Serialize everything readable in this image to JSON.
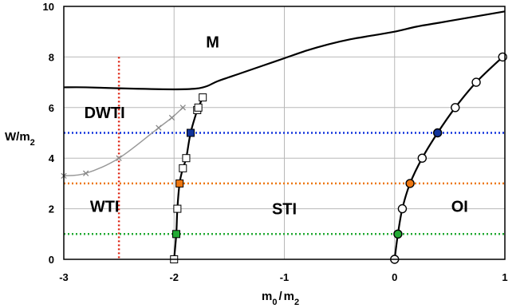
{
  "chart_data": {
    "type": "line",
    "xlabel": {
      "base": "m",
      "sub": "0",
      "sep": "/",
      "base2": "m",
      "sub2": "2"
    },
    "ylabel": {
      "base": "W/m",
      "sub": "2"
    },
    "xlim": [
      -3,
      1
    ],
    "ylim": [
      0,
      10
    ],
    "xticks": [
      -3,
      -2,
      -1,
      0,
      1
    ],
    "xtick_labels": [
      "-3",
      "-2",
      "-1",
      "0",
      "1"
    ],
    "yticks": [
      0,
      2,
      4,
      6,
      8,
      10
    ],
    "ytick_labels": [
      "0",
      "2",
      "4",
      "6",
      "8",
      "10"
    ],
    "grid": true,
    "phase_labels": [
      {
        "text": "M",
        "x": -1.65,
        "y": 8.6
      },
      {
        "text": "DWTI",
        "x": -2.63,
        "y": 5.8
      },
      {
        "text": "WTI",
        "x": -2.63,
        "y": 2.1
      },
      {
        "text": "STI",
        "x": -1.0,
        "y": 2.0
      },
      {
        "text": "OI",
        "x": 0.59,
        "y": 2.1
      }
    ],
    "series": [
      {
        "style": "solid-black",
        "points": [
          [
            -3,
            6.8
          ],
          [
            -2.8,
            6.8
          ],
          [
            -2.4,
            6.75
          ],
          [
            -2.0,
            6.72
          ],
          [
            -1.8,
            6.75
          ],
          [
            -1.7,
            6.85
          ],
          [
            -1.6,
            7.05
          ],
          [
            -1.4,
            7.35
          ],
          [
            -1.2,
            7.65
          ],
          [
            -1.0,
            7.95
          ],
          [
            -0.8,
            8.25
          ],
          [
            -0.6,
            8.5
          ],
          [
            -0.4,
            8.7
          ],
          [
            -0.2,
            8.85
          ],
          [
            0.0,
            9.0
          ],
          [
            0.2,
            9.2
          ],
          [
            0.4,
            9.35
          ],
          [
            0.6,
            9.5
          ],
          [
            0.8,
            9.65
          ],
          [
            1.0,
            9.8
          ]
        ]
      },
      {
        "style": "black-line-square-markers",
        "points": [
          [
            -2.0,
            0.0
          ],
          [
            -1.98,
            1.0
          ],
          [
            -1.97,
            2.0
          ],
          [
            -1.95,
            3.0
          ],
          [
            -1.92,
            3.6
          ],
          [
            -1.89,
            4.0
          ],
          [
            -1.85,
            5.0
          ],
          [
            -1.79,
            5.9
          ],
          [
            -1.78,
            6.0
          ],
          [
            -1.74,
            6.4
          ]
        ],
        "filled": [
          [
            1,
            "#22aa33"
          ],
          [
            3,
            "#ee7711"
          ],
          [
            6,
            "#113399"
          ]
        ]
      },
      {
        "style": "black-line-circle-markers",
        "points": [
          [
            0.0,
            0.0
          ],
          [
            0.03,
            1.0
          ],
          [
            0.07,
            2.0
          ],
          [
            0.14,
            3.0
          ],
          [
            0.25,
            4.0
          ],
          [
            0.39,
            5.0
          ],
          [
            0.55,
            6.0
          ],
          [
            0.74,
            7.0
          ],
          [
            0.98,
            8.0
          ]
        ],
        "filled": [
          [
            1,
            "#22aa33"
          ],
          [
            3,
            "#ee7711"
          ],
          [
            5,
            "#113399"
          ]
        ]
      },
      {
        "style": "gray-x-markers",
        "points": [
          [
            -3.0,
            3.3
          ],
          [
            -2.8,
            3.4
          ],
          [
            -2.5,
            4.0
          ],
          [
            -2.14,
            5.2
          ],
          [
            -2.02,
            5.6
          ],
          [
            -1.92,
            6.0
          ]
        ]
      }
    ],
    "reference_lines": [
      {
        "orientation": "vertical",
        "value": -2.5,
        "color": "#dd2211",
        "style": "dotted"
      },
      {
        "orientation": "horizontal",
        "value": 5,
        "color": "#1133dd",
        "style": "dotted"
      },
      {
        "orientation": "horizontal",
        "value": 3,
        "color": "#ee7711",
        "style": "dotted"
      },
      {
        "orientation": "horizontal",
        "value": 1,
        "color": "#22aa33",
        "style": "dotted"
      }
    ]
  }
}
